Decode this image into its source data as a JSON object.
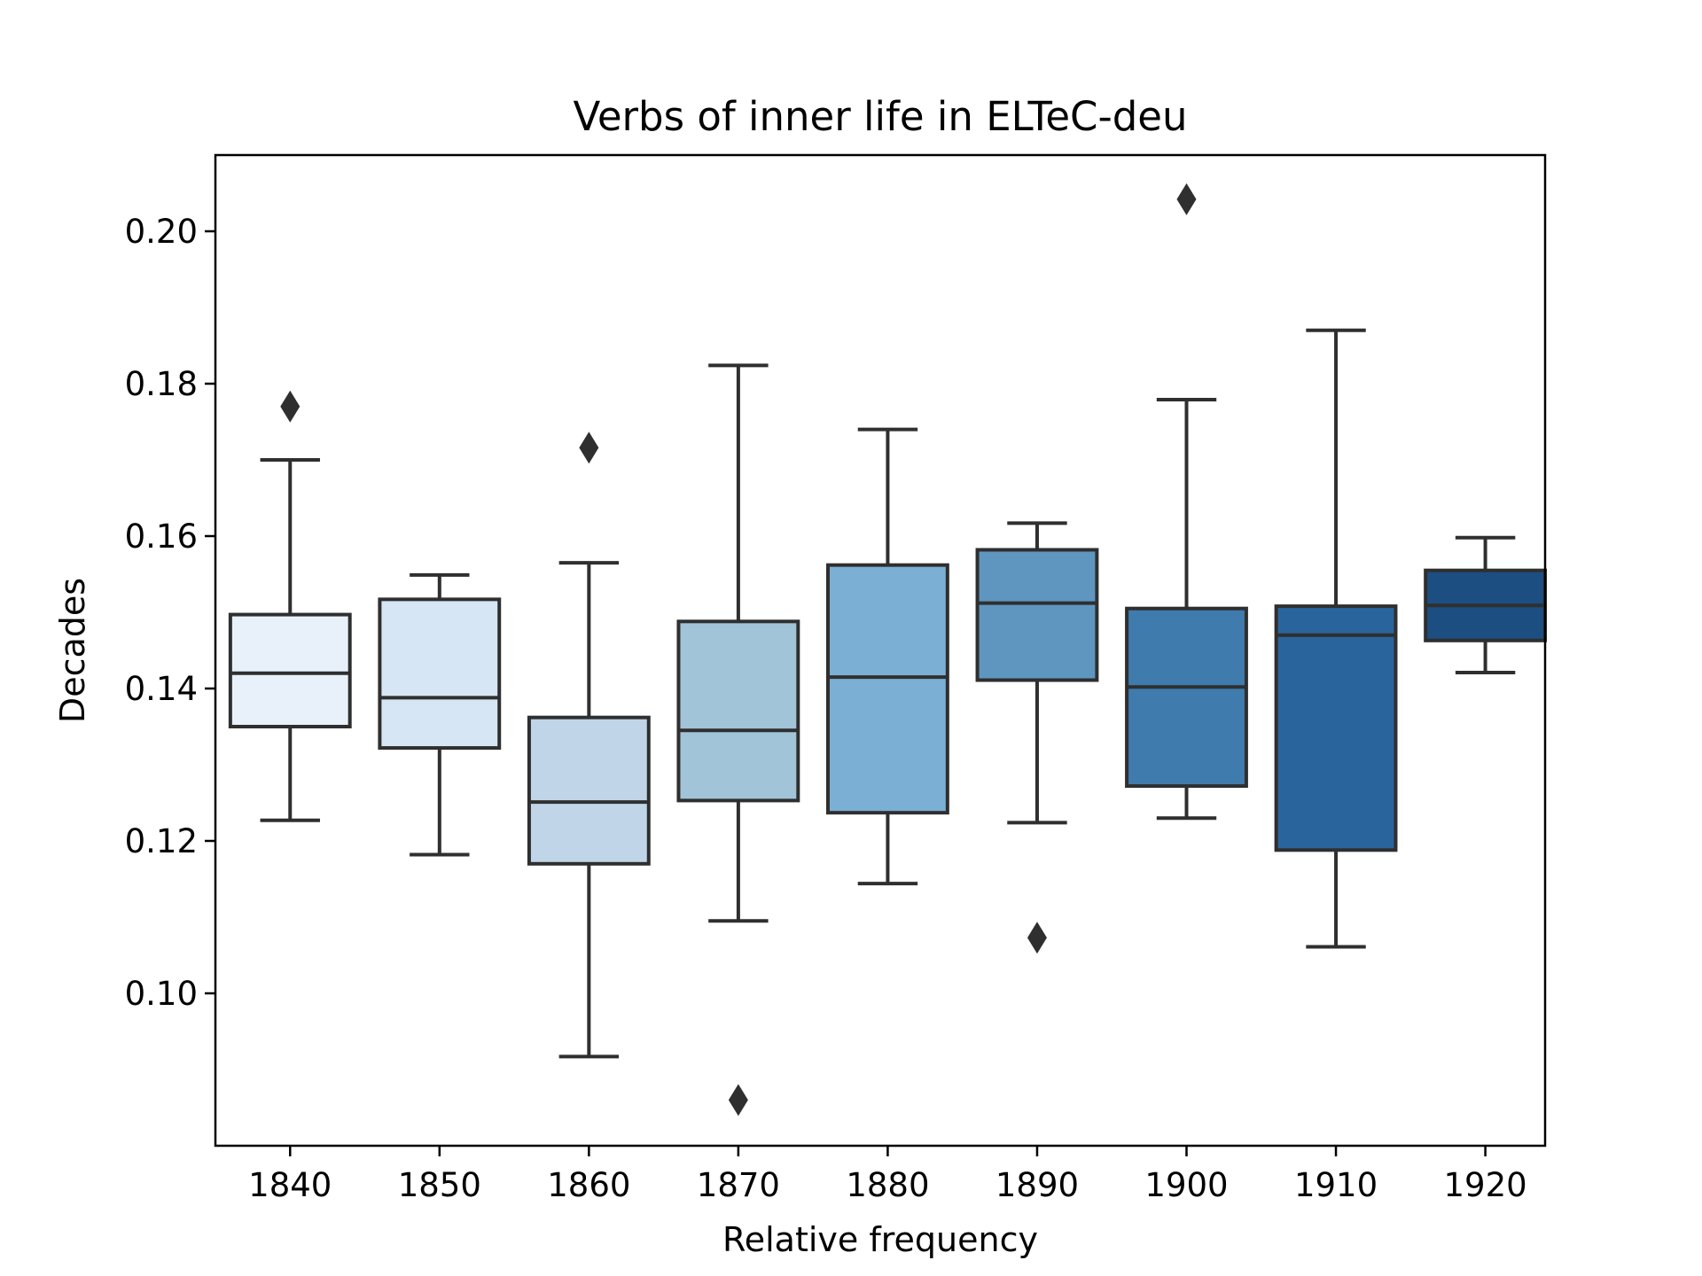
{
  "chart_data": {
    "type": "box",
    "title": "Verbs of inner life in ELTeC-deu",
    "xlabel": "Relative frequency",
    "ylabel": "Decades",
    "ylim": [
      0.08,
      0.21
    ],
    "yticks": [
      "0.10",
      "0.12",
      "0.14",
      "0.16",
      "0.18",
      "0.20"
    ],
    "ytick_values": [
      0.1,
      0.12,
      0.14,
      0.16,
      0.18,
      0.2
    ],
    "categories": [
      "1840",
      "1850",
      "1860",
      "1870",
      "1880",
      "1890",
      "1900",
      "1910",
      "1920"
    ],
    "grid": false,
    "boxes": [
      {
        "category": "1840",
        "whisker_low": 0.1227,
        "q1": 0.135,
        "median": 0.142,
        "q3": 0.1497,
        "whisker_high": 0.17,
        "outliers": [
          0.177
        ],
        "color": "#e8f1fa"
      },
      {
        "category": "1850",
        "whisker_low": 0.1182,
        "q1": 0.1322,
        "median": 0.1388,
        "q3": 0.1517,
        "whisker_high": 0.1549,
        "outliers": [],
        "color": "#d7e6f4"
      },
      {
        "category": "1860",
        "whisker_low": 0.0917,
        "q1": 0.117,
        "median": 0.1251,
        "q3": 0.1362,
        "whisker_high": 0.1565,
        "outliers": [
          0.1716
        ],
        "color": "#c0d6e8"
      },
      {
        "category": "1870",
        "whisker_low": 0.1095,
        "q1": 0.1253,
        "median": 0.1345,
        "q3": 0.1488,
        "whisker_high": 0.1824,
        "outliers": [
          0.086
        ],
        "color": "#a2c4d9"
      },
      {
        "category": "1880",
        "whisker_low": 0.1144,
        "q1": 0.1237,
        "median": 0.1415,
        "q3": 0.1562,
        "whisker_high": 0.174,
        "outliers": [],
        "color": "#7bafd4"
      },
      {
        "category": "1890",
        "whisker_low": 0.1224,
        "q1": 0.1411,
        "median": 0.1512,
        "q3": 0.1582,
        "whisker_high": 0.1617,
        "outliers": [
          0.1073
        ],
        "color": "#5e96c0"
      },
      {
        "category": "1900",
        "whisker_low": 0.123,
        "q1": 0.1272,
        "median": 0.1402,
        "q3": 0.1505,
        "whisker_high": 0.1779,
        "outliers": [
          0.2042
        ],
        "color": "#3f7bad"
      },
      {
        "category": "1910",
        "whisker_low": 0.1061,
        "q1": 0.1188,
        "median": 0.147,
        "q3": 0.1508,
        "whisker_high": 0.187,
        "outliers": [],
        "color": "#2a649c"
      },
      {
        "category": "1920",
        "whisker_low": 0.1421,
        "q1": 0.1463,
        "median": 0.1509,
        "q3": 0.1555,
        "whisker_high": 0.1598,
        "outliers": [],
        "color": "#1c4e82"
      }
    ]
  }
}
